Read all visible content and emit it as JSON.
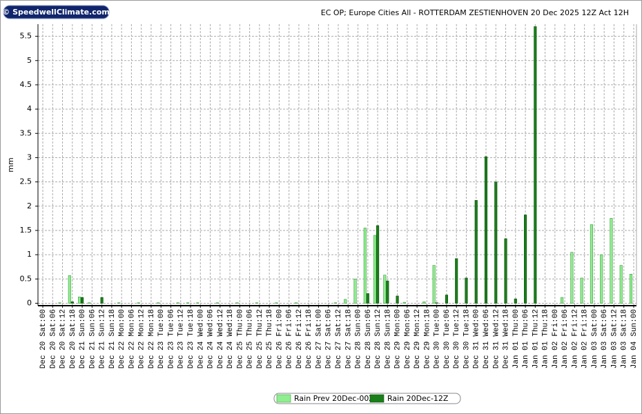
{
  "chart_data": {
    "type": "bar",
    "brand": "© SpeedwellClimate.com",
    "title": "EC OP; Europe Cities All - ROTTERDAM ZESTIENHOVEN 20 Dec 2025 12Z Act 12H",
    "y_label": "mm",
    "categories": [
      [
        "Dec 20",
        "Sat:00"
      ],
      [
        "Dec 20",
        "Sat:06"
      ],
      [
        "Dec 20",
        "Sat:12"
      ],
      [
        "Dec 20",
        "Sat:18"
      ],
      [
        "Dec 21",
        "Sun:00"
      ],
      [
        "Dec 21",
        "Sun:06"
      ],
      [
        "Dec 21",
        "Sun:12"
      ],
      [
        "Dec 21",
        "Sun:18"
      ],
      [
        "Dec 22",
        "Mon:00"
      ],
      [
        "Dec 22",
        "Mon:06"
      ],
      [
        "Dec 22",
        "Mon:12"
      ],
      [
        "Dec 22",
        "Mon:18"
      ],
      [
        "Dec 23",
        "Tue:00"
      ],
      [
        "Dec 23",
        "Tue:06"
      ],
      [
        "Dec 23",
        "Tue:12"
      ],
      [
        "Dec 23",
        "Tue:18"
      ],
      [
        "Dec 24",
        "Wed:00"
      ],
      [
        "Dec 24",
        "Wed:06"
      ],
      [
        "Dec 24",
        "Wed:12"
      ],
      [
        "Dec 24",
        "Wed:18"
      ],
      [
        "Dec 25",
        "Thu:00"
      ],
      [
        "Dec 25",
        "Thu:06"
      ],
      [
        "Dec 25",
        "Thu:12"
      ],
      [
        "Dec 25",
        "Thu:18"
      ],
      [
        "Dec 26",
        "Fri:00"
      ],
      [
        "Dec 26",
        "Fri:06"
      ],
      [
        "Dec 26",
        "Fri:12"
      ],
      [
        "Dec 26",
        "Fri:18"
      ],
      [
        "Dec 27",
        "Sat:00"
      ],
      [
        "Dec 27",
        "Sat:06"
      ],
      [
        "Dec 27",
        "Sat:12"
      ],
      [
        "Dec 27",
        "Sat:18"
      ],
      [
        "Dec 28",
        "Sun:00"
      ],
      [
        "Dec 28",
        "Sun:06"
      ],
      [
        "Dec 28",
        "Sun:12"
      ],
      [
        "Dec 28",
        "Sun:18"
      ],
      [
        "Dec 29",
        "Mon:00"
      ],
      [
        "Dec 29",
        "Mon:06"
      ],
      [
        "Dec 29",
        "Mon:12"
      ],
      [
        "Dec 29",
        "Mon:18"
      ],
      [
        "Dec 30",
        "Tue:00"
      ],
      [
        "Dec 30",
        "Tue:06"
      ],
      [
        "Dec 30",
        "Tue:12"
      ],
      [
        "Dec 30",
        "Tue:18"
      ],
      [
        "Dec 31",
        "Wed:00"
      ],
      [
        "Dec 31",
        "Wed:06"
      ],
      [
        "Dec 31",
        "Wed:12"
      ],
      [
        "Dec 31",
        "Wed:18"
      ],
      [
        "Jan 01",
        "Thu:00"
      ],
      [
        "Jan 01",
        "Thu:06"
      ],
      [
        "Jan 01",
        "Thu:12"
      ],
      [
        "Jan 01",
        "Thu:18"
      ],
      [
        "Jan 02",
        "Fri:00"
      ],
      [
        "Jan 02",
        "Fri:06"
      ],
      [
        "Jan 02",
        "Fri:12"
      ],
      [
        "Jan 02",
        "Fri:18"
      ],
      [
        "Jan 03",
        "Sat:00"
      ],
      [
        "Jan 03",
        "Sat:06"
      ],
      [
        "Jan 03",
        "Sat:12"
      ],
      [
        "Jan 03",
        "Sat:18"
      ],
      [
        "Jan 04",
        "Sun:00"
      ]
    ],
    "series": [
      {
        "name": "Rain Prev 20Dec-00Z",
        "color": "#90ee90",
        "edge": "#3c9a3c",
        "values": [
          0,
          0,
          0.01,
          0.57,
          0.13,
          0.01,
          0,
          0,
          0.01,
          0,
          0.01,
          0,
          0.01,
          0,
          0.01,
          0.01,
          0.01,
          0,
          0.01,
          0,
          0.01,
          0,
          0.01,
          0,
          0.01,
          0,
          0.01,
          0,
          0,
          0,
          0.01,
          0.08,
          0.5,
          1.55,
          1.4,
          0.58,
          0,
          0.02,
          0,
          0.03,
          0.78,
          0,
          0,
          0,
          0,
          0,
          0,
          0,
          0,
          0,
          0,
          0,
          0,
          0.12,
          1.05,
          0.52,
          1.62,
          1.0,
          1.75,
          0.78,
          0.6
        ]
      },
      {
        "name": "Rain 20Dec-12Z",
        "color": "#1a7f1a",
        "edge": "#0b4d0b",
        "values": [
          0,
          0,
          0,
          0.03,
          0.12,
          0,
          0.12,
          0,
          0,
          0,
          0,
          0,
          0,
          0,
          0,
          0,
          0,
          0,
          0,
          0,
          0,
          0,
          0,
          0,
          0,
          0,
          0,
          0,
          0,
          0,
          0,
          0,
          0,
          0.2,
          1.6,
          0.46,
          0.15,
          0,
          0,
          0,
          0.01,
          0.17,
          0.92,
          0.52,
          2.12,
          3.02,
          2.5,
          1.33,
          0.09,
          1.82,
          5.7,
          0,
          0,
          0,
          0,
          0,
          0,
          0,
          0,
          0,
          0
        ]
      }
    ],
    "ylim": [
      -0.05,
      5.75
    ],
    "yticks": [
      0,
      0.5,
      1,
      1.5,
      2,
      2.5,
      3,
      3.5,
      4,
      4.5,
      5,
      5.5
    ],
    "grid": true
  }
}
